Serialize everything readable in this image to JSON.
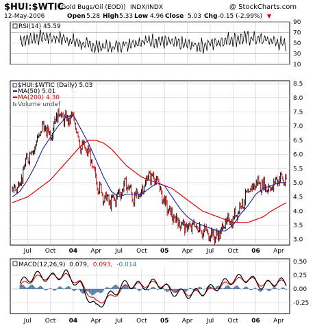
{
  "header": {
    "symbol": "$HUI:$WTIC",
    "description": "(Gold Bugs/Oil (EOD))",
    "exchange": "INDX/INDX",
    "watermark": "@ StockCharts.com",
    "date": "12-May-2006",
    "open_label": "Open",
    "open": "5.28",
    "high_label": "High",
    "high": "5.33",
    "low_label": "Low",
    "low": "4.96",
    "close_label": "Close",
    "close": "5.03",
    "chg_label": "Chg",
    "chg": "-0.15 (-2.99%)",
    "chg_arrow": "▼"
  },
  "rsi": {
    "label": "RSI(14) 45.59",
    "ticks": [
      "90",
      "70",
      "50",
      "30",
      "10"
    ]
  },
  "price": {
    "legend_main": "$HUI:$WTIC (Daily) 5.03",
    "legend_ma50": "MA(50) 5.01",
    "legend_ma200": "MA(200) 4.30",
    "legend_volume": "Volume undef",
    "ticks": [
      "8.5",
      "8.0",
      "7.5",
      "7.0",
      "6.5",
      "6.0",
      "5.5",
      "5.0",
      "4.5",
      "4.0",
      "3.5",
      "3.0"
    ]
  },
  "macd": {
    "label_prefix": "MACD(12,26,9)",
    "macd_value": "0.079,",
    "signal_value": "0.093,",
    "hist_value": "-0.014",
    "ticks": [
      "0.50",
      "0.25",
      "0.00",
      "-0.25"
    ]
  },
  "xaxis": {
    "labels": [
      "Jul",
      "Oct",
      "04",
      "Apr",
      "Jul",
      "Oct",
      "05",
      "Apr",
      "Jul",
      "Oct",
      "06",
      "Apr"
    ]
  },
  "colors": {
    "price": "#000000",
    "down_bar": "#cc0000",
    "ma50": "#1a1aa6",
    "ma200": "#e00000",
    "macd_line": "#000000",
    "signal_line": "#e00000",
    "histogram": "#3a6ea5",
    "chg": "#cc0000",
    "grid": "#cfcfcf"
  },
  "chart_data": [
    {
      "type": "line",
      "name": "RSI",
      "title": "RSI(14) 45.59",
      "ylim": [
        10,
        90
      ],
      "x": [
        "2003-06",
        "2003-09",
        "2003-12",
        "2004-03",
        "2004-06",
        "2004-09",
        "2004-12",
        "2005-03",
        "2005-06",
        "2005-09",
        "2005-12",
        "2006-03",
        "2006-05"
      ],
      "values": [
        55,
        62,
        58,
        45,
        42,
        52,
        55,
        48,
        45,
        56,
        60,
        55,
        46
      ]
    },
    {
      "type": "line",
      "title": "$HUI:$WTIC (Daily) 5.03",
      "ylim": [
        2.8,
        8.6
      ],
      "x": [
        "2003-05",
        "2003-06",
        "2003-07",
        "2003-08",
        "2003-09",
        "2003-10",
        "2003-11",
        "2003-12",
        "2004-01",
        "2004-02",
        "2004-03",
        "2004-04",
        "2004-05",
        "2004-06",
        "2004-07",
        "2004-08",
        "2004-09",
        "2004-10",
        "2004-11",
        "2004-12",
        "2005-01",
        "2005-02",
        "2005-03",
        "2005-04",
        "2005-05",
        "2005-06",
        "2005-07",
        "2005-08",
        "2005-09",
        "2005-10",
        "2005-11",
        "2005-12",
        "2006-01",
        "2006-02",
        "2006-03",
        "2006-04",
        "2006-05"
      ],
      "series": [
        {
          "name": "$HUI:$WTIC",
          "values": [
            4.7,
            5.0,
            5.9,
            6.3,
            7.0,
            6.7,
            7.5,
            7.2,
            7.3,
            6.3,
            6.1,
            5.1,
            4.5,
            4.3,
            4.6,
            5.0,
            4.4,
            4.7,
            5.3,
            5.1,
            4.3,
            3.8,
            3.6,
            3.4,
            3.5,
            3.3,
            3.2,
            3.1,
            3.6,
            3.7,
            4.2,
            4.6,
            5.0,
            4.9,
            4.8,
            5.2,
            5.03
          ]
        },
        {
          "name": "MA(50)",
          "values": [
            4.5,
            4.7,
            5.1,
            5.6,
            6.2,
            6.6,
            7.0,
            7.3,
            7.4,
            6.9,
            6.4,
            5.8,
            5.2,
            4.7,
            4.5,
            4.6,
            4.6,
            4.6,
            4.8,
            5.0,
            4.9,
            4.5,
            4.1,
            3.8,
            3.6,
            3.5,
            3.4,
            3.3,
            3.3,
            3.5,
            3.9,
            4.2,
            4.6,
            4.8,
            4.9,
            5.0,
            5.01
          ]
        },
        {
          "name": "MA(200)",
          "values": [
            4.3,
            4.4,
            4.5,
            4.7,
            4.9,
            5.1,
            5.4,
            5.7,
            6.0,
            6.3,
            6.5,
            6.5,
            6.4,
            6.2,
            5.9,
            5.6,
            5.4,
            5.2,
            5.1,
            5.0,
            4.9,
            4.8,
            4.6,
            4.4,
            4.2,
            4.0,
            3.9,
            3.8,
            3.7,
            3.6,
            3.6,
            3.6,
            3.7,
            3.8,
            4.0,
            4.15,
            4.3
          ]
        }
      ]
    },
    {
      "type": "line",
      "title": "MACD(12,26,9)",
      "ylim": [
        -0.45,
        0.55
      ],
      "x": [
        "2003-06",
        "2003-08",
        "2003-10",
        "2003-12",
        "2004-02",
        "2004-04",
        "2004-06",
        "2004-08",
        "2004-10",
        "2004-12",
        "2005-02",
        "2005-04",
        "2005-06",
        "2005-08",
        "2005-10",
        "2005-12",
        "2006-02",
        "2006-04",
        "2006-05"
      ],
      "series": [
        {
          "name": "MACD",
          "values": [
            0.1,
            0.25,
            0.2,
            0.28,
            0.05,
            -0.35,
            -0.1,
            0.1,
            0.05,
            0.12,
            -0.05,
            -0.1,
            -0.05,
            0.05,
            0.18,
            0.2,
            0.05,
            0.15,
            0.079
          ]
        },
        {
          "name": "Signal",
          "values": [
            0.05,
            0.2,
            0.22,
            0.24,
            0.1,
            -0.25,
            -0.15,
            0.05,
            0.07,
            0.1,
            0.0,
            -0.08,
            -0.07,
            0.02,
            0.14,
            0.19,
            0.08,
            0.13,
            0.093
          ]
        },
        {
          "name": "Histogram",
          "values": [
            0.05,
            0.05,
            -0.02,
            0.04,
            -0.05,
            -0.1,
            0.05,
            0.05,
            -0.02,
            0.02,
            -0.05,
            -0.02,
            0.02,
            0.03,
            0.04,
            0.01,
            -0.03,
            0.02,
            -0.014
          ]
        }
      ]
    }
  ]
}
